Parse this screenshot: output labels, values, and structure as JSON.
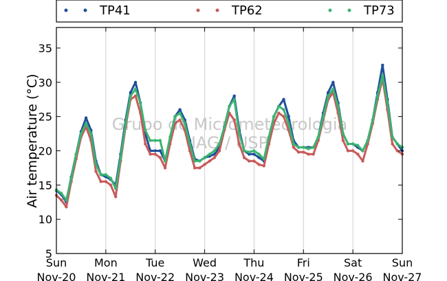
{
  "chart_data": {
    "type": "scatter",
    "title": "",
    "xlabel": "",
    "ylabel": "Air temperature (°C)",
    "ylim": [
      5,
      38
    ],
    "yticks": [
      5,
      10,
      15,
      20,
      25,
      30,
      35
    ],
    "xlim": [
      "2016-11-20 00:00",
      "2016-11-27 00:00"
    ],
    "xticks": [
      {
        "day": "Sun",
        "date": "Nov-20"
      },
      {
        "day": "Mon",
        "date": "Nov-21"
      },
      {
        "day": "Tue",
        "date": "Nov-22"
      },
      {
        "day": "Wed",
        "date": "Nov-23"
      },
      {
        "day": "Thu",
        "date": "Nov-24"
      },
      {
        "day": "Fri",
        "date": "Nov-25"
      },
      {
        "day": "Sat",
        "date": "Nov-26"
      },
      {
        "day": "Sun",
        "date": "Nov-27"
      }
    ],
    "grid": "vertical",
    "legend_position": "top",
    "watermark": [
      "Grupo de Micrometeorologia",
      "IAG / USP"
    ],
    "x_unit": "days since Nov-20 00:00",
    "series": [
      {
        "name": "TP41",
        "color": "#1f4e9a",
        "points": [
          [
            0.0,
            14.2
          ],
          [
            0.1,
            13.6
          ],
          [
            0.2,
            12.5
          ],
          [
            0.3,
            16.2
          ],
          [
            0.4,
            19.5
          ],
          [
            0.5,
            22.8
          ],
          [
            0.6,
            24.8
          ],
          [
            0.7,
            23.0
          ],
          [
            0.8,
            18.5
          ],
          [
            0.9,
            16.5
          ],
          [
            1.0,
            16.2
          ],
          [
            1.1,
            15.8
          ],
          [
            1.2,
            15.0
          ],
          [
            1.3,
            19.5
          ],
          [
            1.4,
            24.5
          ],
          [
            1.5,
            28.5
          ],
          [
            1.6,
            30.0
          ],
          [
            1.7,
            27.0
          ],
          [
            1.8,
            22.5
          ],
          [
            1.9,
            20.0
          ],
          [
            2.0,
            20.0
          ],
          [
            2.1,
            20.0
          ],
          [
            2.2,
            18.5
          ],
          [
            2.3,
            21.5
          ],
          [
            2.4,
            25.0
          ],
          [
            2.5,
            26.0
          ],
          [
            2.6,
            24.5
          ],
          [
            2.7,
            21.5
          ],
          [
            2.8,
            18.8
          ],
          [
            2.9,
            18.5
          ],
          [
            3.0,
            19.0
          ],
          [
            3.1,
            19.2
          ],
          [
            3.2,
            19.5
          ],
          [
            3.3,
            20.5
          ],
          [
            3.4,
            23.5
          ],
          [
            3.5,
            26.5
          ],
          [
            3.6,
            28.0
          ],
          [
            3.7,
            23.0
          ],
          [
            3.8,
            20.0
          ],
          [
            3.9,
            19.5
          ],
          [
            4.0,
            19.5
          ],
          [
            4.1,
            19.0
          ],
          [
            4.2,
            18.5
          ],
          [
            4.3,
            21.5
          ],
          [
            4.4,
            25.0
          ],
          [
            4.5,
            26.5
          ],
          [
            4.6,
            27.5
          ],
          [
            4.7,
            25.0
          ],
          [
            4.8,
            21.5
          ],
          [
            4.9,
            20.5
          ],
          [
            5.0,
            20.5
          ],
          [
            5.1,
            20.5
          ],
          [
            5.2,
            20.5
          ],
          [
            5.3,
            22.0
          ],
          [
            5.4,
            25.5
          ],
          [
            5.5,
            28.5
          ],
          [
            5.6,
            30.0
          ],
          [
            5.7,
            27.0
          ],
          [
            5.8,
            22.5
          ],
          [
            5.9,
            21.0
          ],
          [
            6.0,
            21.0
          ],
          [
            6.1,
            20.5
          ],
          [
            6.2,
            20.0
          ],
          [
            6.3,
            21.5
          ],
          [
            6.4,
            24.5
          ],
          [
            6.5,
            28.5
          ],
          [
            6.6,
            32.5
          ],
          [
            6.7,
            27.5
          ],
          [
            6.8,
            22.0
          ],
          [
            6.9,
            21.0
          ],
          [
            7.0,
            20.0
          ]
        ]
      },
      {
        "name": "TP62",
        "color": "#c85a5a",
        "points": [
          [
            0.0,
            13.5
          ],
          [
            0.1,
            12.8
          ],
          [
            0.2,
            11.8
          ],
          [
            0.3,
            15.5
          ],
          [
            0.4,
            18.8
          ],
          [
            0.5,
            22.0
          ],
          [
            0.6,
            23.5
          ],
          [
            0.7,
            21.5
          ],
          [
            0.8,
            17.0
          ],
          [
            0.9,
            15.5
          ],
          [
            1.0,
            15.5
          ],
          [
            1.1,
            15.0
          ],
          [
            1.2,
            13.3
          ],
          [
            1.3,
            18.5
          ],
          [
            1.4,
            23.5
          ],
          [
            1.5,
            27.5
          ],
          [
            1.6,
            28.0
          ],
          [
            1.7,
            25.5
          ],
          [
            1.8,
            21.0
          ],
          [
            1.9,
            19.5
          ],
          [
            2.0,
            19.5
          ],
          [
            2.1,
            19.0
          ],
          [
            2.2,
            17.5
          ],
          [
            2.3,
            21.0
          ],
          [
            2.4,
            24.0
          ],
          [
            2.5,
            24.5
          ],
          [
            2.6,
            23.0
          ],
          [
            2.7,
            20.0
          ],
          [
            2.8,
            17.5
          ],
          [
            2.9,
            17.5
          ],
          [
            3.0,
            18.0
          ],
          [
            3.1,
            18.5
          ],
          [
            3.2,
            19.0
          ],
          [
            3.3,
            20.0
          ],
          [
            3.4,
            23.0
          ],
          [
            3.5,
            25.5
          ],
          [
            3.6,
            24.5
          ],
          [
            3.7,
            21.0
          ],
          [
            3.8,
            19.0
          ],
          [
            3.9,
            18.5
          ],
          [
            4.0,
            18.5
          ],
          [
            4.1,
            18.0
          ],
          [
            4.2,
            17.8
          ],
          [
            4.3,
            21.0
          ],
          [
            4.4,
            24.0
          ],
          [
            4.5,
            25.5
          ],
          [
            4.6,
            25.0
          ],
          [
            4.7,
            23.0
          ],
          [
            4.8,
            20.5
          ],
          [
            4.9,
            19.8
          ],
          [
            5.0,
            19.8
          ],
          [
            5.1,
            19.5
          ],
          [
            5.2,
            19.5
          ],
          [
            5.3,
            21.5
          ],
          [
            5.4,
            24.5
          ],
          [
            5.5,
            27.5
          ],
          [
            5.6,
            28.5
          ],
          [
            5.7,
            25.5
          ],
          [
            5.8,
            21.5
          ],
          [
            5.9,
            20.0
          ],
          [
            6.0,
            20.0
          ],
          [
            6.1,
            19.5
          ],
          [
            6.2,
            18.5
          ],
          [
            6.3,
            21.0
          ],
          [
            6.4,
            24.0
          ],
          [
            6.5,
            27.5
          ],
          [
            6.6,
            30.5
          ],
          [
            6.7,
            26.0
          ],
          [
            6.8,
            21.0
          ],
          [
            6.9,
            20.0
          ],
          [
            7.0,
            19.5
          ]
        ]
      },
      {
        "name": "TP73",
        "color": "#3cb371",
        "points": [
          [
            0.0,
            14.3
          ],
          [
            0.1,
            13.8
          ],
          [
            0.2,
            12.8
          ],
          [
            0.3,
            16.0
          ],
          [
            0.4,
            19.5
          ],
          [
            0.5,
            22.5
          ],
          [
            0.6,
            24.0
          ],
          [
            0.7,
            22.5
          ],
          [
            0.8,
            18.0
          ],
          [
            0.9,
            16.5
          ],
          [
            1.0,
            16.5
          ],
          [
            1.1,
            16.0
          ],
          [
            1.2,
            14.5
          ],
          [
            1.3,
            19.0
          ],
          [
            1.4,
            24.0
          ],
          [
            1.5,
            28.0
          ],
          [
            1.6,
            29.0
          ],
          [
            1.7,
            27.0
          ],
          [
            1.8,
            23.0
          ],
          [
            1.9,
            21.5
          ],
          [
            2.0,
            21.5
          ],
          [
            2.1,
            21.5
          ],
          [
            2.2,
            18.5
          ],
          [
            2.3,
            22.0
          ],
          [
            2.4,
            25.0
          ],
          [
            2.5,
            25.5
          ],
          [
            2.6,
            24.0
          ],
          [
            2.7,
            21.0
          ],
          [
            2.8,
            18.5
          ],
          [
            2.9,
            18.5
          ],
          [
            3.0,
            19.0
          ],
          [
            3.1,
            19.5
          ],
          [
            3.2,
            20.0
          ],
          [
            3.3,
            21.0
          ],
          [
            3.4,
            23.5
          ],
          [
            3.5,
            26.5
          ],
          [
            3.6,
            27.5
          ],
          [
            3.7,
            22.5
          ],
          [
            3.8,
            20.0
          ],
          [
            3.9,
            19.8
          ],
          [
            4.0,
            20.0
          ],
          [
            4.1,
            19.5
          ],
          [
            4.2,
            18.8
          ],
          [
            4.3,
            22.0
          ],
          [
            4.4,
            25.0
          ],
          [
            4.5,
            26.5
          ],
          [
            4.6,
            26.0
          ],
          [
            4.7,
            24.0
          ],
          [
            4.8,
            21.0
          ],
          [
            4.9,
            20.5
          ],
          [
            5.0,
            20.5
          ],
          [
            5.1,
            20.3
          ],
          [
            5.2,
            20.5
          ],
          [
            5.3,
            22.0
          ],
          [
            5.4,
            25.0
          ],
          [
            5.5,
            28.0
          ],
          [
            5.6,
            29.0
          ],
          [
            5.7,
            26.5
          ],
          [
            5.8,
            22.5
          ],
          [
            5.9,
            21.0
          ],
          [
            6.0,
            21.0
          ],
          [
            6.1,
            20.8
          ],
          [
            6.2,
            20.0
          ],
          [
            6.3,
            21.5
          ],
          [
            6.4,
            24.5
          ],
          [
            6.5,
            28.0
          ],
          [
            6.6,
            31.0
          ],
          [
            6.7,
            27.0
          ],
          [
            6.8,
            22.0
          ],
          [
            6.9,
            21.0
          ],
          [
            7.0,
            20.5
          ]
        ]
      }
    ]
  }
}
